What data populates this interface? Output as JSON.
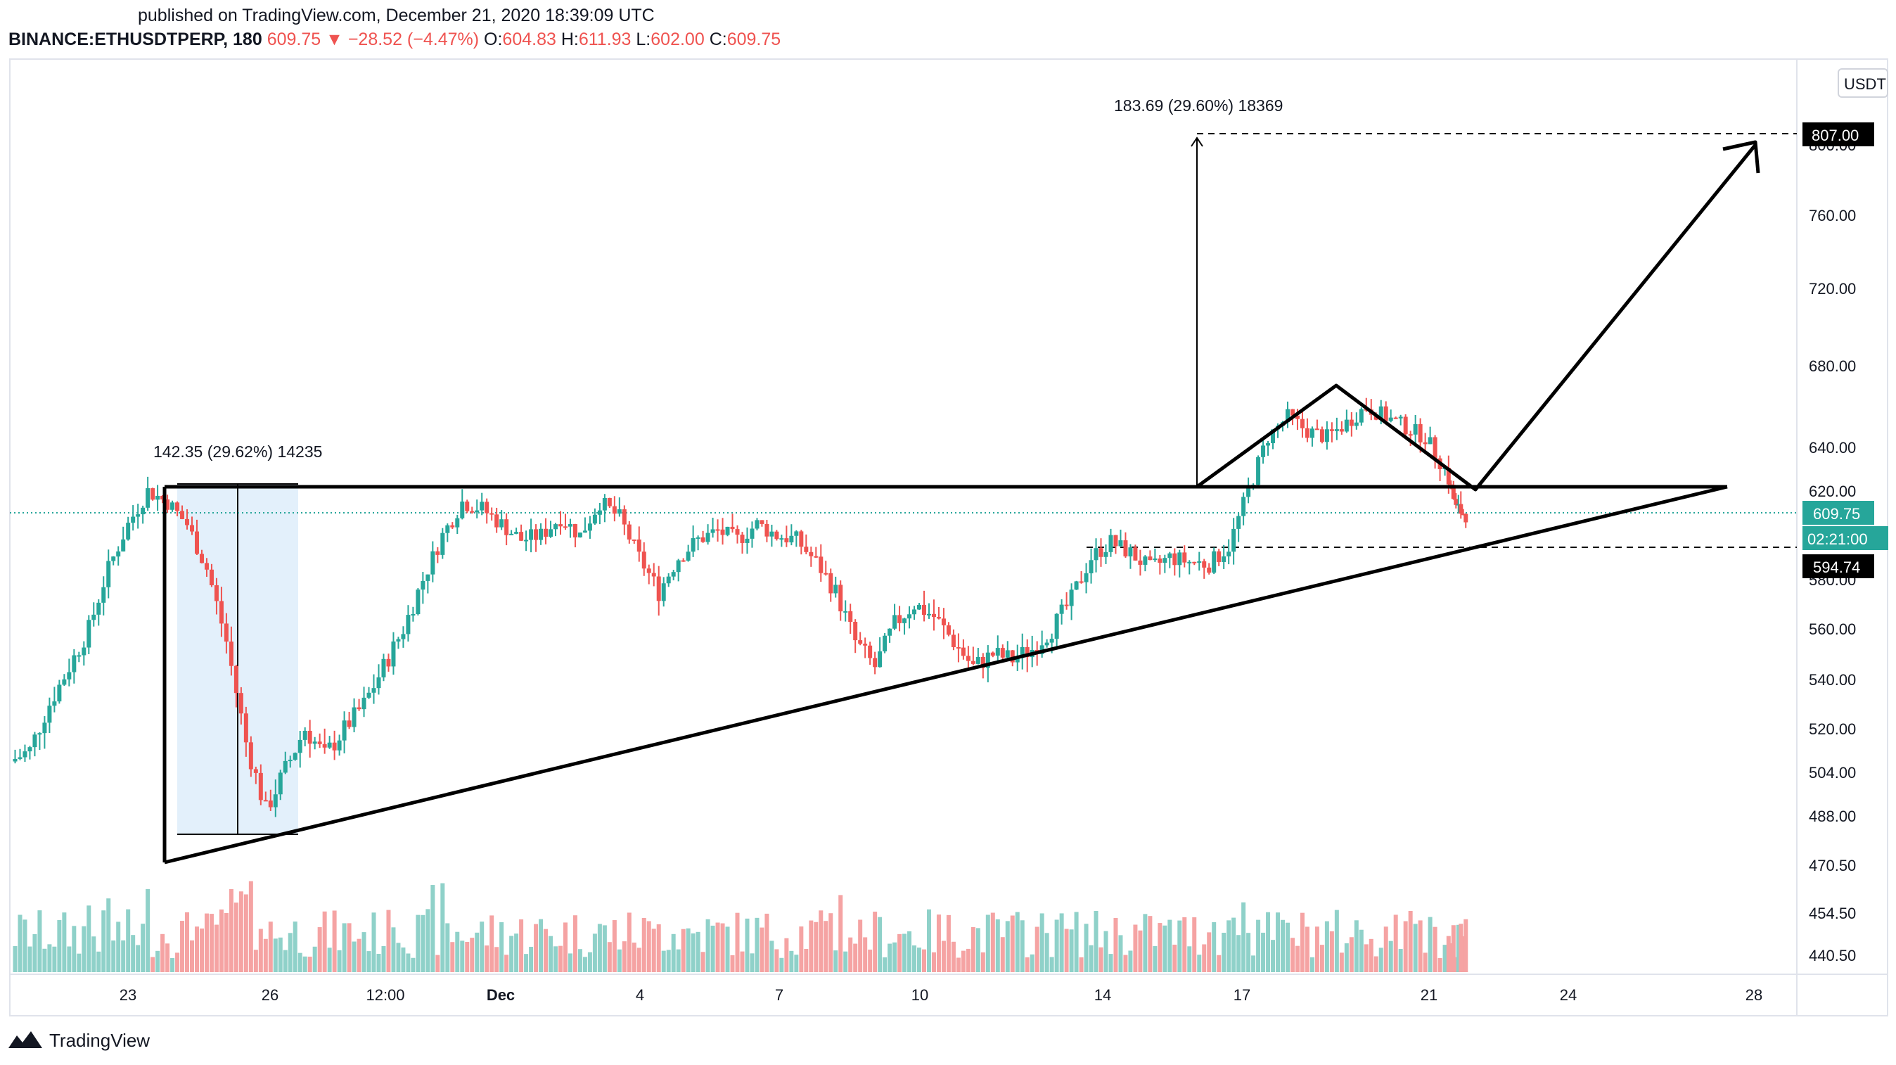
{
  "header": {
    "published": "published on TradingView.com, December 21, 2020 18:39:09 UTC",
    "symbol": "BINANCE:ETHUSDTPERP, 180",
    "last": "609.75",
    "change_arrow": "▼",
    "change": "−28.52 (−4.47%)",
    "o_label": "O:",
    "o_value": "604.83",
    "h_label": "H:",
    "h_value": "611.93",
    "l_label": "L:",
    "l_value": "602.00",
    "c_label": "C:",
    "c_value": "609.75"
  },
  "footer": {
    "brand": "TradingView"
  },
  "colors": {
    "up": "#26a69a",
    "down": "#ef5350",
    "upVol": "#8fd1c9",
    "downVol": "#f5a3a3",
    "drawing": "#000000",
    "measure": "#e3f0fb"
  },
  "chart_data": {
    "type": "candlestick",
    "currency": "USDT",
    "y_ticks": [
      "807.00",
      "800.00",
      "760.00",
      "720.00",
      "680.00",
      "640.00",
      "620.00",
      "580.00",
      "560.00",
      "540.00",
      "520.00",
      "504.00",
      "488.00",
      "470.50",
      "454.50",
      "440.50"
    ],
    "x_ticks": [
      "23",
      "26",
      "12:00",
      "Dec",
      "4",
      "7",
      "10",
      "14",
      "17",
      "21",
      "24",
      "28"
    ],
    "price_labels": {
      "target": "807.00",
      "last": "609.75",
      "countdown": "02:21:00",
      "support": "594.74"
    },
    "annotations": {
      "measure_left": "142.35 (29.62%) 14235",
      "measure_right": "183.69 (29.60%) 18369"
    },
    "series_close": [
      [
        0,
        508
      ],
      [
        2,
        512
      ],
      [
        4,
        530
      ],
      [
        6,
        545
      ],
      [
        8,
        560
      ],
      [
        10,
        585
      ],
      [
        12,
        605
      ],
      [
        14,
        620
      ],
      [
        16,
        615
      ],
      [
        18,
        605
      ],
      [
        20,
        585
      ],
      [
        22,
        555
      ],
      [
        24,
        515
      ],
      [
        26,
        490
      ],
      [
        28,
        505
      ],
      [
        30,
        520
      ],
      [
        32,
        510
      ],
      [
        34,
        520
      ],
      [
        36,
        530
      ],
      [
        38,
        545
      ],
      [
        40,
        560
      ],
      [
        42,
        580
      ],
      [
        44,
        600
      ],
      [
        46,
        615
      ],
      [
        48,
        612
      ],
      [
        50,
        605
      ],
      [
        52,
        598
      ],
      [
        54,
        600
      ],
      [
        56,
        608
      ],
      [
        58,
        600
      ],
      [
        60,
        615
      ],
      [
        62,
        608
      ],
      [
        64,
        590
      ],
      [
        66,
        575
      ],
      [
        68,
        590
      ],
      [
        70,
        598
      ],
      [
        72,
        602
      ],
      [
        74,
        598
      ],
      [
        76,
        605
      ],
      [
        78,
        600
      ],
      [
        80,
        598
      ],
      [
        82,
        588
      ],
      [
        84,
        575
      ],
      [
        86,
        555
      ],
      [
        88,
        545
      ],
      [
        90,
        562
      ],
      [
        92,
        570
      ],
      [
        94,
        565
      ],
      [
        96,
        555
      ],
      [
        98,
        545
      ],
      [
        100,
        550
      ],
      [
        102,
        548
      ],
      [
        104,
        552
      ],
      [
        106,
        560
      ],
      [
        108,
        572
      ],
      [
        110,
        590
      ],
      [
        112,
        597
      ],
      [
        114,
        592
      ],
      [
        116,
        585
      ],
      [
        118,
        590
      ],
      [
        120,
        588
      ],
      [
        122,
        587
      ],
      [
        124,
        595
      ],
      [
        126,
        620
      ],
      [
        128,
        645
      ],
      [
        130,
        655
      ],
      [
        132,
        648
      ],
      [
        134,
        645
      ],
      [
        136,
        652
      ],
      [
        138,
        660
      ],
      [
        140,
        655
      ],
      [
        142,
        650
      ],
      [
        144,
        645
      ],
      [
        146,
        630
      ],
      [
        147,
        612
      ],
      [
        148,
        609.75
      ]
    ],
    "volume_note": "volume bars in lower pane"
  }
}
